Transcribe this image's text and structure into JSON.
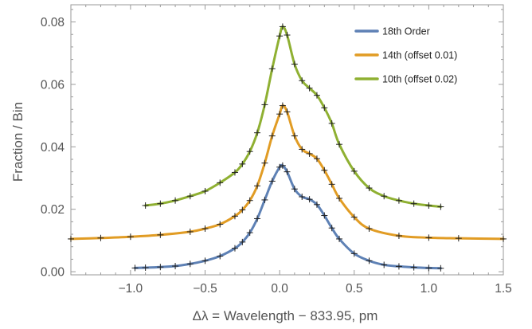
{
  "chart_data": {
    "type": "line",
    "xlabel": "Δλ = Wavelength − 833.95, pm",
    "ylabel": "Fraction / Bin",
    "xlim": [
      -1.4,
      1.5
    ],
    "ylim": [
      -0.001,
      0.0855
    ],
    "x_ticks": [
      -1.0,
      -0.5,
      0.0,
      0.5,
      1.0,
      1.5
    ],
    "x_tick_labels": [
      "−1.0",
      "−0.5",
      "0.0",
      "0.5",
      "1.0",
      "1.5"
    ],
    "y_ticks": [
      0.0,
      0.02,
      0.04,
      0.06,
      0.08
    ],
    "y_tick_labels": [
      "0.00",
      "0.02",
      "0.04",
      "0.06",
      "0.08"
    ],
    "grid": false,
    "legend_position": "top-right",
    "series": [
      {
        "name": "18th Order",
        "color": "#5e81b5",
        "x": [
          -0.97,
          -0.9,
          -0.8,
          -0.7,
          -0.6,
          -0.5,
          -0.4,
          -0.3,
          -0.25,
          -0.2,
          -0.15,
          -0.1,
          -0.05,
          0.0,
          0.02,
          0.05,
          0.1,
          0.15,
          0.2,
          0.25,
          0.3,
          0.35,
          0.4,
          0.5,
          0.6,
          0.7,
          0.8,
          0.9,
          1.0,
          1.08
        ],
        "values": [
          0.0012,
          0.0013,
          0.0015,
          0.0018,
          0.0025,
          0.0035,
          0.005,
          0.0075,
          0.0095,
          0.0125,
          0.017,
          0.023,
          0.029,
          0.0335,
          0.034,
          0.032,
          0.0265,
          0.024,
          0.0232,
          0.0215,
          0.018,
          0.014,
          0.0105,
          0.0058,
          0.0035,
          0.0022,
          0.0017,
          0.0014,
          0.0012,
          0.0011
        ]
      },
      {
        "name": "14th (offset 0.01)",
        "color": "#e19c24",
        "x": [
          -1.4,
          -1.2,
          -1.0,
          -0.8,
          -0.6,
          -0.5,
          -0.4,
          -0.3,
          -0.25,
          -0.2,
          -0.15,
          -0.1,
          -0.05,
          0.0,
          0.02,
          0.05,
          0.1,
          0.15,
          0.2,
          0.25,
          0.3,
          0.35,
          0.4,
          0.5,
          0.6,
          0.8,
          1.0,
          1.2,
          1.5
        ],
        "values": [
          0.0105,
          0.0108,
          0.0112,
          0.0118,
          0.0128,
          0.0138,
          0.0152,
          0.0178,
          0.0198,
          0.0228,
          0.0275,
          0.0348,
          0.0435,
          0.0505,
          0.0532,
          0.0512,
          0.0435,
          0.0392,
          0.0378,
          0.0362,
          0.0325,
          0.028,
          0.0235,
          0.0175,
          0.0138,
          0.0115,
          0.0109,
          0.0107,
          0.0105
        ]
      },
      {
        "name": "10th (offset 0.02)",
        "color": "#8fb032",
        "x": [
          -0.9,
          -0.8,
          -0.7,
          -0.6,
          -0.5,
          -0.4,
          -0.3,
          -0.25,
          -0.2,
          -0.15,
          -0.1,
          -0.05,
          0.0,
          0.02,
          0.05,
          0.1,
          0.15,
          0.2,
          0.25,
          0.3,
          0.35,
          0.4,
          0.5,
          0.6,
          0.7,
          0.8,
          0.9,
          1.0,
          1.08
        ],
        "values": [
          0.0212,
          0.0218,
          0.0228,
          0.0242,
          0.0258,
          0.0285,
          0.0318,
          0.0345,
          0.0385,
          0.0445,
          0.0535,
          0.065,
          0.0755,
          0.0785,
          0.0758,
          0.0665,
          0.0612,
          0.0588,
          0.0565,
          0.0525,
          0.0475,
          0.0408,
          0.0322,
          0.0268,
          0.0242,
          0.0228,
          0.0218,
          0.0212,
          0.0208
        ]
      }
    ]
  }
}
